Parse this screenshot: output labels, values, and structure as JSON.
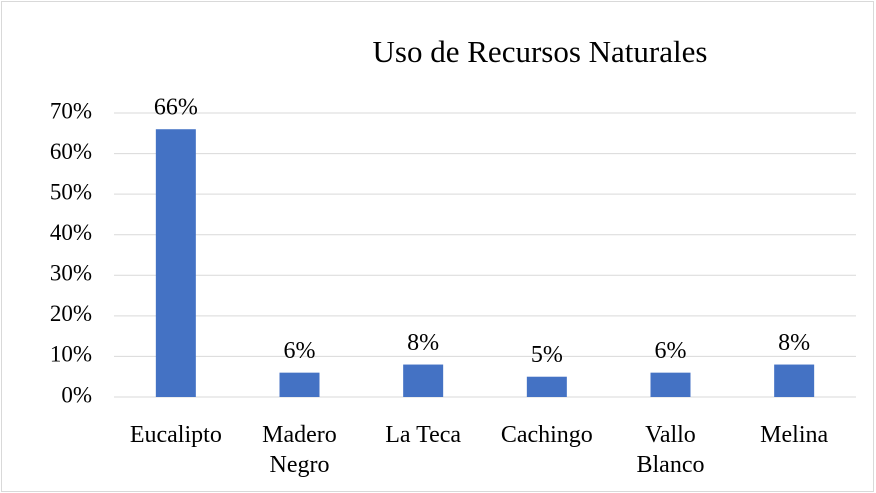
{
  "chart_data": {
    "type": "bar",
    "title": "Uso de Recursos Naturales",
    "categories": [
      "Eucalipto",
      "Madero Negro",
      "La Teca",
      "Cachingo",
      "Vallo Blanco",
      "Melina"
    ],
    "values": [
      66,
      6,
      8,
      5,
      6,
      8
    ],
    "value_labels": [
      "66%",
      "6%",
      "8%",
      "5%",
      "6%",
      "8%"
    ],
    "color": "#4472c4",
    "ylim": [
      0,
      70
    ],
    "yticks": [
      {
        "value": 0,
        "label": "0%"
      },
      {
        "value": 10,
        "label": "10%"
      },
      {
        "value": 20,
        "label": "20%"
      },
      {
        "value": 30,
        "label": "30%"
      },
      {
        "value": 40,
        "label": "40%"
      },
      {
        "value": 50,
        "label": "50%"
      },
      {
        "value": 60,
        "label": "60%"
      },
      {
        "value": 70,
        "label": "70%"
      }
    ],
    "grid": true
  }
}
